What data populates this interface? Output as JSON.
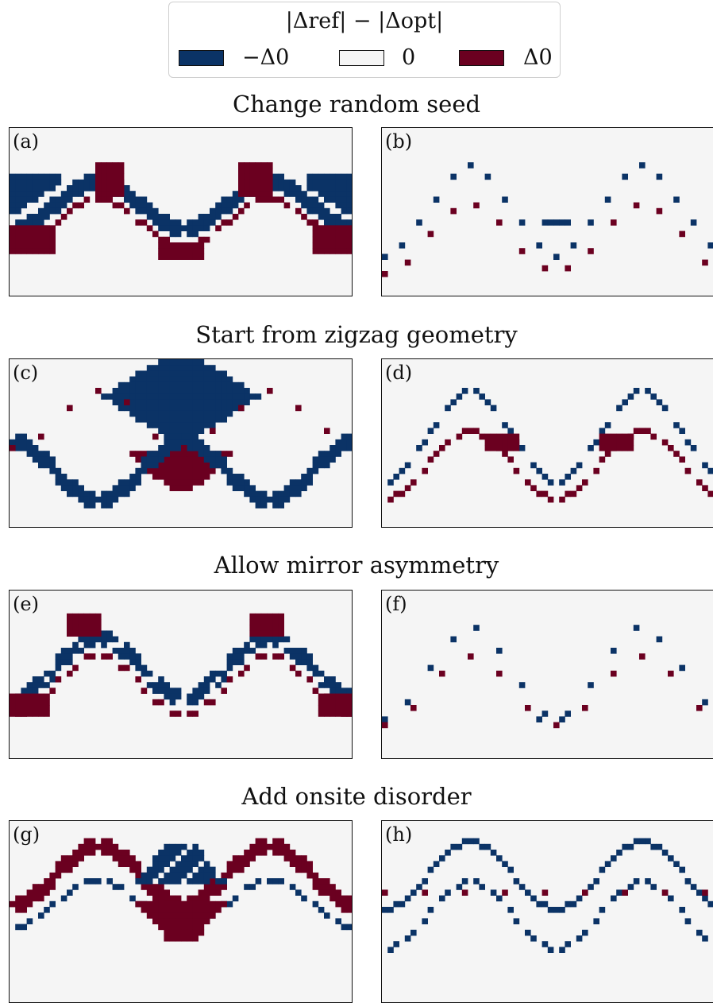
{
  "colors": {
    "negative": "#0b3366",
    "zero": "#f5f5f5",
    "positive": "#6b0020"
  },
  "legend": {
    "title": "|Δref| − |Δopt|",
    "entries": [
      {
        "label": "−Δ0",
        "color": "#0b3366"
      },
      {
        "label": "0",
        "color": "#f5f5f5"
      },
      {
        "label": "Δ0",
        "color": "#6b0020"
      }
    ]
  },
  "sections": [
    {
      "title": "Change random seed",
      "panels": [
        {
          "label": "(a)"
        },
        {
          "label": "(b)"
        }
      ]
    },
    {
      "title": "Start from zigzag geometry",
      "panels": [
        {
          "label": "(c)"
        },
        {
          "label": "(d)"
        }
      ]
    },
    {
      "title": "Allow mirror asymmetry",
      "panels": [
        {
          "label": "(e)"
        },
        {
          "label": "(f)"
        }
      ]
    },
    {
      "title": "Add onsite disorder",
      "panels": [
        {
          "label": "(g)"
        },
        {
          "label": "(h)"
        }
      ]
    }
  ]
}
